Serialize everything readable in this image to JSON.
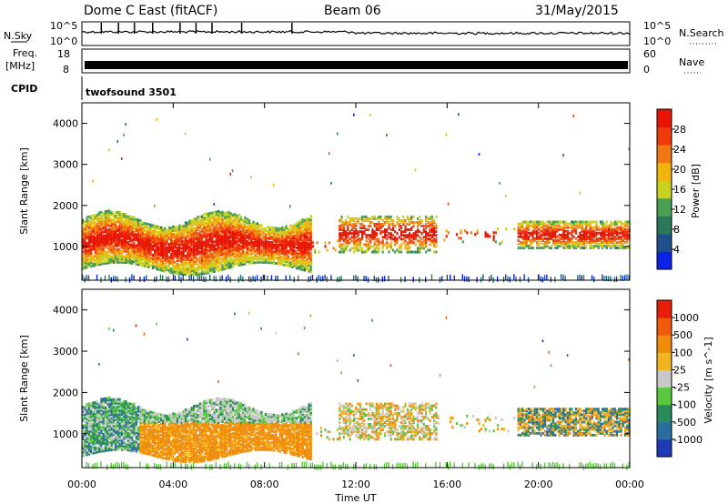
{
  "header": {
    "station": "Dome C East (fitACF)",
    "beam": "Beam 06",
    "date": "31/May/2015"
  },
  "labels": {
    "nsky": "N.Sky",
    "freq_line1": "Freq.",
    "freq_line2": "[MHz]",
    "cpid": "CPID",
    "nsearch": "N.Search",
    "nave": "Nave",
    "cpid_value": "twofsound 3501",
    "nsky_ticks": [
      "10^5",
      "10^0"
    ],
    "freq_ticks": [
      "18",
      "8"
    ],
    "nave_ticks": [
      "60",
      "0"
    ],
    "nsearch_ticks": [
      "10^5",
      "10^0"
    ]
  },
  "colors": {
    "power_scale": [
      "#0a23e6",
      "#1e508c",
      "#2a7a5a",
      "#4aa050",
      "#c8d21e",
      "#f0b40a",
      "#f07814",
      "#f03c0a",
      "#e61400"
    ],
    "velocity_scale": [
      "#1e3cb4",
      "#2a6ea0",
      "#2a8c5a",
      "#5ac83c",
      "#c8c8c8",
      "#f0b41e",
      "#f08c0a",
      "#f05a0a",
      "#e61e0a"
    ]
  },
  "chart_data": [
    {
      "type": "heatmap",
      "title": "",
      "variable": "Power",
      "ylabel": "Slant Range [km]",
      "xlabel": "Time UT",
      "x_ticks": [
        "00:00",
        "04:00",
        "08:00",
        "12:00",
        "16:00",
        "20:00",
        "00:00"
      ],
      "xlim_hours": [
        0,
        24
      ],
      "y_ticks": [
        1000,
        2000,
        3000,
        4000
      ],
      "ylim": [
        180,
        4500
      ],
      "colorbar_label": "Power [dB]",
      "colorbar_ticks": [
        4,
        8,
        12,
        16,
        20,
        24,
        28
      ],
      "colorbar_range": [
        0,
        30
      ]
    },
    {
      "type": "heatmap",
      "title": "",
      "variable": "Velocity",
      "ylabel": "Slant Range [km]",
      "xlabel": "Time UT",
      "x_ticks": [
        "00:00",
        "04:00",
        "08:00",
        "12:00",
        "16:00",
        "20:00",
        "00:00"
      ],
      "xlim_hours": [
        0,
        24
      ],
      "y_ticks": [
        1000,
        2000,
        3000,
        4000
      ],
      "ylim": [
        180,
        4500
      ],
      "colorbar_label": "Velocity [m s^-1]",
      "colorbar_ticks": [
        1000,
        500,
        100,
        25,
        -25,
        -100,
        -500,
        -1000
      ]
    }
  ]
}
